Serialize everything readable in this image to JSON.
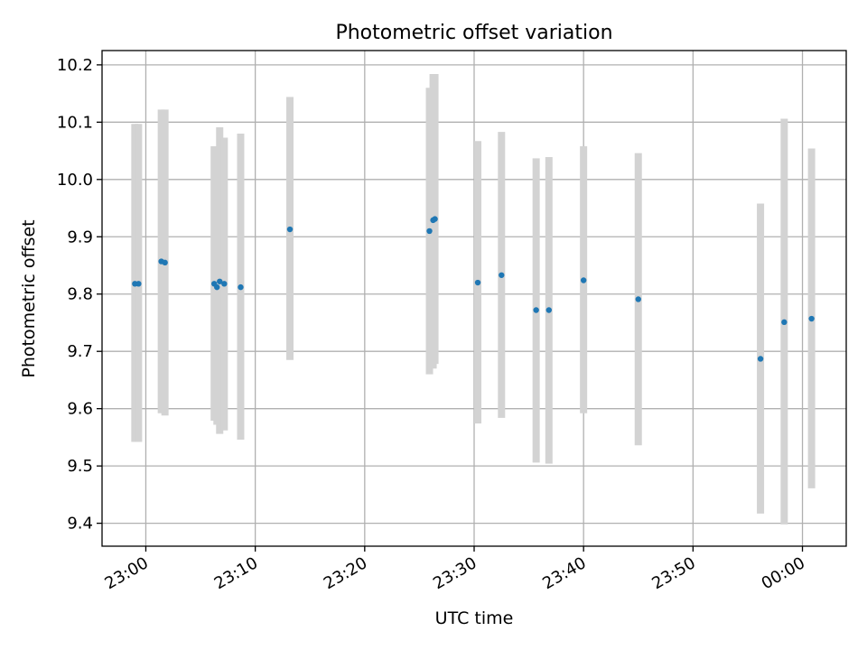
{
  "chart_data": {
    "type": "scatter",
    "title": "Photometric offset variation",
    "xlabel": "UTC time",
    "ylabel": "Photometric offset",
    "grid": true,
    "xlim": [
      "22:56",
      "00:04"
    ],
    "ylim": [
      9.36,
      10.225
    ],
    "x_ticks": [
      "23:00",
      "23:10",
      "23:20",
      "23:30",
      "23:40",
      "23:50",
      "00:00"
    ],
    "y_ticks": [
      "9.4",
      "9.5",
      "9.6",
      "9.7",
      "9.8",
      "9.9",
      "10.0",
      "10.1",
      "10.2"
    ],
    "colors": {
      "points": "#1f77b4",
      "error_bars": "#d3d3d3",
      "grid": "#b0b0b0"
    },
    "points": [
      {
        "time": "22:59:00",
        "y": 9.818,
        "ylo": 9.542,
        "yhi": 10.097
      },
      {
        "time": "22:59:20",
        "y": 9.818,
        "ylo": 9.542,
        "yhi": 10.097
      },
      {
        "time": "23:01:25",
        "y": 9.857,
        "ylo": 9.592,
        "yhi": 10.122
      },
      {
        "time": "23:01:45",
        "y": 9.855,
        "ylo": 9.588,
        "yhi": 10.122
      },
      {
        "time": "23:06:15",
        "y": 9.818,
        "ylo": 9.579,
        "yhi": 10.058
      },
      {
        "time": "23:06:30",
        "y": 9.812,
        "ylo": 9.572,
        "yhi": 10.053
      },
      {
        "time": "23:06:45",
        "y": 9.822,
        "ylo": 9.556,
        "yhi": 10.091
      },
      {
        "time": "23:07:10",
        "y": 9.818,
        "ylo": 9.562,
        "yhi": 10.073
      },
      {
        "time": "23:08:40",
        "y": 9.812,
        "ylo": 9.546,
        "yhi": 10.08
      },
      {
        "time": "23:13:10",
        "y": 9.913,
        "ylo": 9.685,
        "yhi": 10.144
      },
      {
        "time": "23:25:55",
        "y": 9.91,
        "ylo": 9.66,
        "yhi": 10.16
      },
      {
        "time": "23:26:15",
        "y": 9.929,
        "ylo": 9.67,
        "yhi": 10.184
      },
      {
        "time": "23:26:25",
        "y": 9.931,
        "ylo": 9.678,
        "yhi": 10.184
      },
      {
        "time": "23:30:20",
        "y": 9.82,
        "ylo": 9.574,
        "yhi": 10.067
      },
      {
        "time": "23:32:30",
        "y": 9.833,
        "ylo": 9.584,
        "yhi": 10.083
      },
      {
        "time": "23:35:40",
        "y": 9.772,
        "ylo": 9.506,
        "yhi": 10.037
      },
      {
        "time": "23:36:50",
        "y": 9.772,
        "ylo": 9.504,
        "yhi": 10.039
      },
      {
        "time": "23:40:00",
        "y": 9.824,
        "ylo": 9.592,
        "yhi": 10.058
      },
      {
        "time": "23:45:00",
        "y": 9.791,
        "ylo": 9.536,
        "yhi": 10.046
      },
      {
        "time": "23:56:10",
        "y": 9.687,
        "ylo": 9.417,
        "yhi": 9.958
      },
      {
        "time": "23:58:20",
        "y": 9.751,
        "ylo": 9.398,
        "yhi": 10.106
      },
      {
        "time": "00:00:50",
        "y": 9.757,
        "ylo": 9.461,
        "yhi": 10.054
      }
    ]
  }
}
